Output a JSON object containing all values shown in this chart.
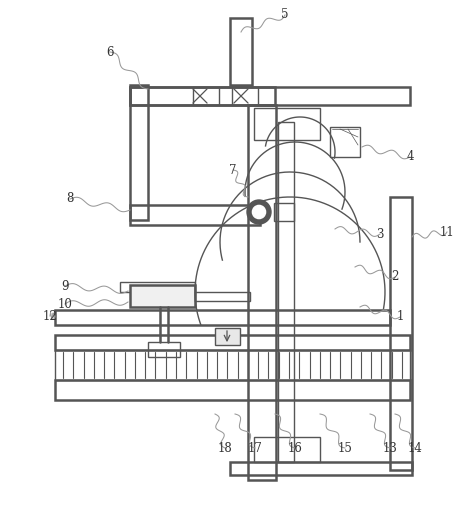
{
  "fig_width": 4.59,
  "fig_height": 5.12,
  "dpi": 100,
  "bg_color": "#ffffff",
  "line_color": "#555555",
  "label_color": "#333333"
}
